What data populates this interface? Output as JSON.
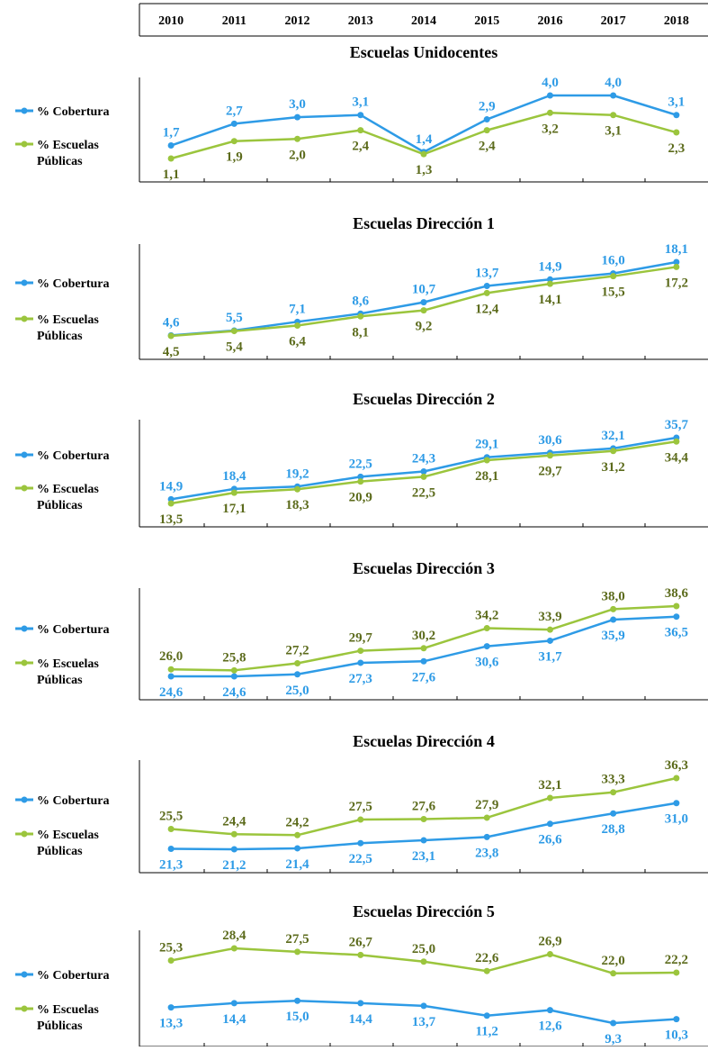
{
  "colors": {
    "cobertura": "#2E9BE6",
    "escuelas": "#9BC53D",
    "escuelas_label": "#5C6B1C",
    "axis": "#000000"
  },
  "legend": {
    "cobertura": "% Cobertura",
    "escuelas_line1": "% Escuelas",
    "escuelas_line2": "Públicas"
  },
  "years": [
    "2010",
    "2011",
    "2012",
    "2013",
    "2014",
    "2015",
    "2016",
    "2017",
    "2018"
  ],
  "chart_data": [
    {
      "type": "line",
      "title": "Escuelas Unidocentes",
      "categories": [
        "2010",
        "2011",
        "2012",
        "2013",
        "2014",
        "2015",
        "2016",
        "2017",
        "2018"
      ],
      "series": [
        {
          "name": "% Cobertura",
          "values": [
            1.7,
            2.7,
            3.0,
            3.1,
            1.4,
            2.9,
            4.0,
            4.0,
            3.1
          ],
          "labels": [
            "1,7",
            "2,7",
            "3,0",
            "3,1",
            "1,4",
            "2,9",
            "4,0",
            "4,0",
            "3,1"
          ]
        },
        {
          "name": "% Escuelas Públicas",
          "values": [
            1.1,
            1.9,
            2.0,
            2.4,
            1.3,
            2.4,
            3.2,
            3.1,
            2.3
          ],
          "labels": [
            "1,1",
            "1,9",
            "2,0",
            "2,4",
            "1,3",
            "2,4",
            "3,2",
            "3,1",
            "2,3"
          ]
        }
      ]
    },
    {
      "type": "line",
      "title": "Escuelas Dirección 1",
      "categories": [
        "2010",
        "2011",
        "2012",
        "2013",
        "2014",
        "2015",
        "2016",
        "2017",
        "2018"
      ],
      "series": [
        {
          "name": "% Cobertura",
          "values": [
            4.6,
            5.5,
            7.1,
            8.6,
            10.7,
            13.7,
            14.9,
            16.0,
            18.1
          ],
          "labels": [
            "4,6",
            "5,5",
            "7,1",
            "8,6",
            "10,7",
            "13,7",
            "14,9",
            "16,0",
            "18,1"
          ]
        },
        {
          "name": "% Escuelas Públicas",
          "values": [
            4.5,
            5.4,
            6.4,
            8.1,
            9.2,
            12.4,
            14.1,
            15.5,
            17.2
          ],
          "labels": [
            "4,5",
            "5,4",
            "6,4",
            "8,1",
            "9,2",
            "12,4",
            "14,1",
            "15,5",
            "17,2"
          ]
        }
      ]
    },
    {
      "type": "line",
      "title": "Escuelas Dirección 2",
      "categories": [
        "2010",
        "2011",
        "2012",
        "2013",
        "2014",
        "2015",
        "2016",
        "2017",
        "2018"
      ],
      "series": [
        {
          "name": "% Cobertura",
          "values": [
            14.9,
            18.4,
            19.2,
            22.5,
            24.3,
            29.1,
            30.6,
            32.1,
            35.7
          ],
          "labels": [
            "14,9",
            "18,4",
            "19,2",
            "22,5",
            "24,3",
            "29,1",
            "30,6",
            "32,1",
            "35,7"
          ]
        },
        {
          "name": "% Escuelas Públicas",
          "values": [
            13.5,
            17.1,
            18.3,
            20.9,
            22.5,
            28.1,
            29.7,
            31.2,
            34.4
          ],
          "labels": [
            "13,5",
            "17,1",
            "18,3",
            "20,9",
            "22,5",
            "28,1",
            "29,7",
            "31,2",
            "34,4"
          ]
        }
      ]
    },
    {
      "type": "line",
      "title": "Escuelas Dirección 3",
      "categories": [
        "2010",
        "2011",
        "2012",
        "2013",
        "2014",
        "2015",
        "2016",
        "2017",
        "2018"
      ],
      "series": [
        {
          "name": "% Cobertura",
          "values": [
            24.6,
            24.6,
            25.0,
            27.3,
            27.6,
            30.6,
            31.7,
            35.9,
            36.5
          ],
          "labels": [
            "24,6",
            "24,6",
            "25,0",
            "27,3",
            "27,6",
            "30,6",
            "31,7",
            "35,9",
            "36,5"
          ]
        },
        {
          "name": "% Escuelas Públicas",
          "values": [
            26.0,
            25.8,
            27.2,
            29.7,
            30.2,
            34.2,
            33.9,
            38.0,
            38.6
          ],
          "labels": [
            "26,0",
            "25,8",
            "27,2",
            "29,7",
            "30,2",
            "34,2",
            "33,9",
            "38,0",
            "38,6"
          ]
        }
      ]
    },
    {
      "type": "line",
      "title": "Escuelas Dirección 4",
      "categories": [
        "2010",
        "2011",
        "2012",
        "2013",
        "2014",
        "2015",
        "2016",
        "2017",
        "2018"
      ],
      "series": [
        {
          "name": "% Cobertura",
          "values": [
            21.3,
            21.2,
            21.4,
            22.5,
            23.1,
            23.8,
            26.6,
            28.8,
            31.0
          ],
          "labels": [
            "21,3",
            "21,2",
            "21,4",
            "22,5",
            "23,1",
            "23,8",
            "26,6",
            "28,8",
            "31,0"
          ]
        },
        {
          "name": "% Escuelas Públicas",
          "values": [
            25.5,
            24.4,
            24.2,
            27.5,
            27.6,
            27.9,
            32.1,
            33.3,
            36.3
          ],
          "labels": [
            "25,5",
            "24,4",
            "24,2",
            "27,5",
            "27,6",
            "27,9",
            "32,1",
            "33,3",
            "36,3"
          ]
        }
      ]
    },
    {
      "type": "line",
      "title": "Escuelas Dirección 5",
      "categories": [
        "2010",
        "2011",
        "2012",
        "2013",
        "2014",
        "2015",
        "2016",
        "2017",
        "2018"
      ],
      "series": [
        {
          "name": "% Cobertura",
          "values": [
            13.3,
            14.4,
            15.0,
            14.4,
            13.7,
            11.2,
            12.6,
            9.3,
            10.3
          ],
          "labels": [
            "13,3",
            "14,4",
            "15,0",
            "14,4",
            "13,7",
            "11,2",
            "12,6",
            "9,3",
            "10,3"
          ]
        },
        {
          "name": "% Escuelas Públicas",
          "values": [
            25.3,
            28.4,
            27.5,
            26.7,
            25.0,
            22.6,
            26.9,
            22.0,
            22.2
          ],
          "labels": [
            "25,3",
            "28,4",
            "27,5",
            "26,7",
            "25,0",
            "22,6",
            "26,9",
            "22,0",
            "22,2"
          ]
        }
      ]
    }
  ]
}
